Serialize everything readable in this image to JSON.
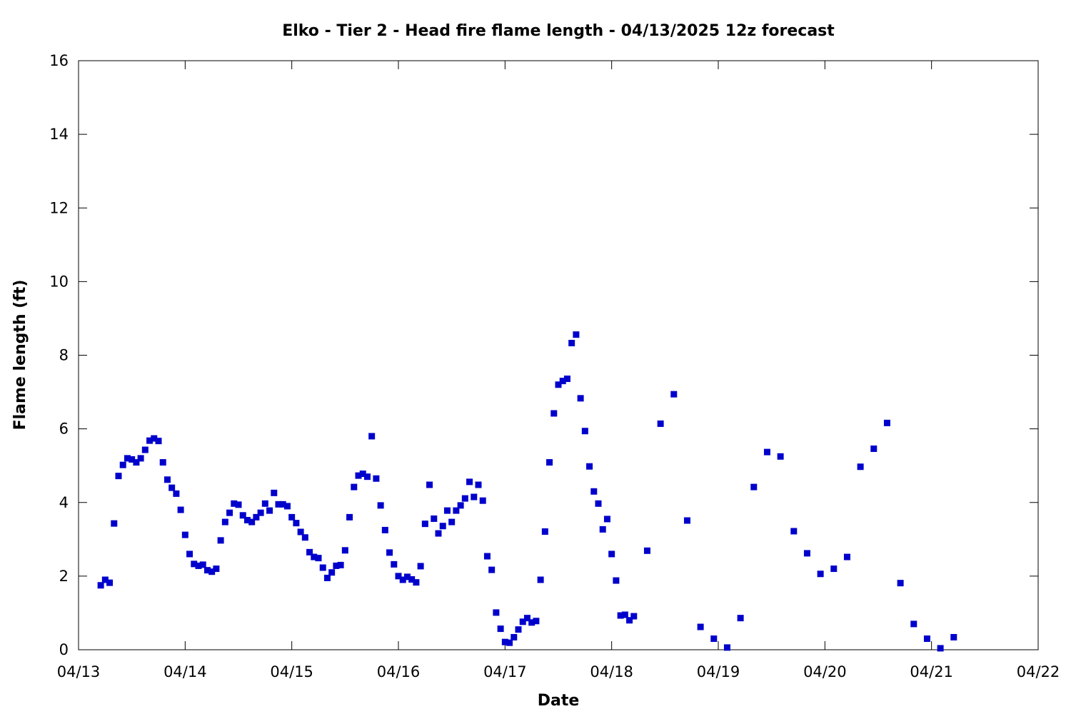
{
  "chart_data": {
    "type": "scatter",
    "title": "Elko - Tier 2 - Head fire flame length - 04/13/2025 12z forecast",
    "xlabel": "Date",
    "ylabel": "Flame length (ft)",
    "x_unit": "days",
    "xlim": [
      "04/13",
      "04/22"
    ],
    "ylim": [
      0,
      16
    ],
    "x_ticks": [
      "04/13",
      "04/14",
      "04/15",
      "04/16",
      "04/17",
      "04/18",
      "04/19",
      "04/20",
      "04/21",
      "04/22"
    ],
    "y_ticks": [
      "0",
      "2",
      "4",
      "6",
      "8",
      "10",
      "12",
      "14",
      "16"
    ],
    "grid": false,
    "marker": "square",
    "marker_color": "#0000cc",
    "series": [
      {
        "points": [
          [
            "04/13 05:00",
            1.75
          ],
          [
            "04/13 06:00",
            1.9
          ],
          [
            "04/13 07:00",
            1.82
          ],
          [
            "04/13 08:00",
            3.43
          ],
          [
            "04/13 09:00",
            4.72
          ],
          [
            "04/13 10:00",
            5.02
          ],
          [
            "04/13 11:00",
            5.2
          ],
          [
            "04/13 12:00",
            5.17
          ],
          [
            "04/13 13:00",
            5.09
          ],
          [
            "04/13 14:00",
            5.2
          ],
          [
            "04/13 15:00",
            5.43
          ],
          [
            "04/13 16:00",
            5.68
          ],
          [
            "04/13 17:00",
            5.74
          ],
          [
            "04/13 18:00",
            5.67
          ],
          [
            "04/13 19:00",
            5.09
          ],
          [
            "04/13 20:00",
            4.62
          ],
          [
            "04/13 21:00",
            4.4
          ],
          [
            "04/13 22:00",
            4.24
          ],
          [
            "04/13 23:00",
            3.8
          ],
          [
            "04/14 00:00",
            3.12
          ],
          [
            "04/14 01:00",
            2.6
          ],
          [
            "04/14 02:00",
            2.33
          ],
          [
            "04/14 03:00",
            2.28
          ],
          [
            "04/14 04:00",
            2.31
          ],
          [
            "04/14 05:00",
            2.16
          ],
          [
            "04/14 06:00",
            2.12
          ],
          [
            "04/14 07:00",
            2.2
          ],
          [
            "04/14 08:00",
            2.97
          ],
          [
            "04/14 09:00",
            3.47
          ],
          [
            "04/14 10:00",
            3.72
          ],
          [
            "04/14 11:00",
            3.97
          ],
          [
            "04/14 12:00",
            3.94
          ],
          [
            "04/14 13:00",
            3.65
          ],
          [
            "04/14 14:00",
            3.52
          ],
          [
            "04/14 15:00",
            3.47
          ],
          [
            "04/14 16:00",
            3.6
          ],
          [
            "04/14 17:00",
            3.72
          ],
          [
            "04/14 18:00",
            3.97
          ],
          [
            "04/14 19:00",
            3.78
          ],
          [
            "04/14 20:00",
            4.26
          ],
          [
            "04/14 21:00",
            3.95
          ],
          [
            "04/14 22:00",
            3.95
          ],
          [
            "04/14 23:00",
            3.9
          ],
          [
            "04/15 00:00",
            3.6
          ],
          [
            "04/15 01:00",
            3.44
          ],
          [
            "04/15 02:00",
            3.2
          ],
          [
            "04/15 03:00",
            3.05
          ],
          [
            "04/15 04:00",
            2.65
          ],
          [
            "04/15 05:00",
            2.52
          ],
          [
            "04/15 06:00",
            2.49
          ],
          [
            "04/15 07:00",
            2.23
          ],
          [
            "04/15 08:00",
            1.95
          ],
          [
            "04/15 09:00",
            2.1
          ],
          [
            "04/15 10:00",
            2.28
          ],
          [
            "04/15 11:00",
            2.3
          ],
          [
            "04/15 12:00",
            2.7
          ],
          [
            "04/15 13:00",
            3.6
          ],
          [
            "04/15 14:00",
            4.42
          ],
          [
            "04/15 15:00",
            4.73
          ],
          [
            "04/15 16:00",
            4.78
          ],
          [
            "04/15 17:00",
            4.7
          ],
          [
            "04/15 18:00",
            5.8
          ],
          [
            "04/15 19:00",
            4.65
          ],
          [
            "04/15 20:00",
            3.92
          ],
          [
            "04/15 21:00",
            3.25
          ],
          [
            "04/15 22:00",
            2.64
          ],
          [
            "04/15 23:00",
            2.32
          ],
          [
            "04/16 00:00",
            2.0
          ],
          [
            "04/16 01:00",
            1.9
          ],
          [
            "04/16 02:00",
            1.98
          ],
          [
            "04/16 03:00",
            1.91
          ],
          [
            "04/16 04:00",
            1.83
          ],
          [
            "04/16 05:00",
            2.27
          ],
          [
            "04/16 06:00",
            3.42
          ],
          [
            "04/16 07:00",
            4.48
          ],
          [
            "04/16 08:00",
            3.56
          ],
          [
            "04/16 09:00",
            3.16
          ],
          [
            "04/16 10:00",
            3.36
          ],
          [
            "04/16 11:00",
            3.78
          ],
          [
            "04/16 12:00",
            3.47
          ],
          [
            "04/16 13:00",
            3.78
          ],
          [
            "04/16 14:00",
            3.92
          ],
          [
            "04/16 15:00",
            4.11
          ],
          [
            "04/16 16:00",
            4.56
          ],
          [
            "04/16 17:00",
            4.15
          ],
          [
            "04/16 18:00",
            4.48
          ],
          [
            "04/16 19:00",
            4.05
          ],
          [
            "04/16 20:00",
            2.54
          ],
          [
            "04/16 21:00",
            2.17
          ],
          [
            "04/16 22:00",
            1.01
          ],
          [
            "04/16 23:00",
            0.57
          ],
          [
            "04/17 00:00",
            0.21
          ],
          [
            "04/17 01:00",
            0.19
          ],
          [
            "04/17 02:00",
            0.34
          ],
          [
            "04/17 03:00",
            0.55
          ],
          [
            "04/17 04:00",
            0.76
          ],
          [
            "04/17 05:00",
            0.86
          ],
          [
            "04/17 06:00",
            0.74
          ],
          [
            "04/17 07:00",
            0.78
          ],
          [
            "04/17 08:00",
            1.9
          ],
          [
            "04/17 09:00",
            3.21
          ],
          [
            "04/17 10:00",
            5.09
          ],
          [
            "04/17 11:00",
            6.42
          ],
          [
            "04/17 12:00",
            7.2
          ],
          [
            "04/17 13:00",
            7.3
          ],
          [
            "04/17 14:00",
            7.36
          ],
          [
            "04/17 15:00",
            8.33
          ],
          [
            "04/17 16:00",
            8.56
          ],
          [
            "04/17 17:00",
            6.83
          ],
          [
            "04/17 18:00",
            5.94
          ],
          [
            "04/17 19:00",
            4.98
          ],
          [
            "04/17 20:00",
            4.3
          ],
          [
            "04/17 21:00",
            3.97
          ],
          [
            "04/17 22:00",
            3.27
          ],
          [
            "04/17 23:00",
            3.55
          ],
          [
            "04/18 00:00",
            2.6
          ],
          [
            "04/18 01:00",
            1.88
          ],
          [
            "04/18 02:00",
            0.93
          ],
          [
            "04/18 03:00",
            0.95
          ],
          [
            "04/18 04:00",
            0.8
          ],
          [
            "04/18 05:00",
            0.91
          ],
          [
            "04/18 08:00",
            2.69
          ],
          [
            "04/18 11:00",
            6.14
          ],
          [
            "04/18 14:00",
            6.94
          ],
          [
            "04/18 17:00",
            3.51
          ],
          [
            "04/18 20:00",
            0.62
          ],
          [
            "04/18 23:00",
            0.3
          ],
          [
            "04/19 02:00",
            0.06
          ],
          [
            "04/19 05:00",
            0.86
          ],
          [
            "04/19 08:00",
            4.42
          ],
          [
            "04/19 11:00",
            5.37
          ],
          [
            "04/19 14:00",
            5.25
          ],
          [
            "04/19 17:00",
            3.22
          ],
          [
            "04/19 20:00",
            2.62
          ],
          [
            "04/19 23:00",
            2.06
          ],
          [
            "04/20 02:00",
            2.2
          ],
          [
            "04/20 05:00",
            2.52
          ],
          [
            "04/20 08:00",
            4.97
          ],
          [
            "04/20 11:00",
            5.46
          ],
          [
            "04/20 14:00",
            6.16
          ],
          [
            "04/20 17:00",
            1.81
          ],
          [
            "04/20 20:00",
            0.7
          ],
          [
            "04/20 23:00",
            0.3
          ],
          [
            "04/21 02:00",
            0.04
          ],
          [
            "04/21 05:00",
            0.34
          ]
        ]
      }
    ]
  }
}
